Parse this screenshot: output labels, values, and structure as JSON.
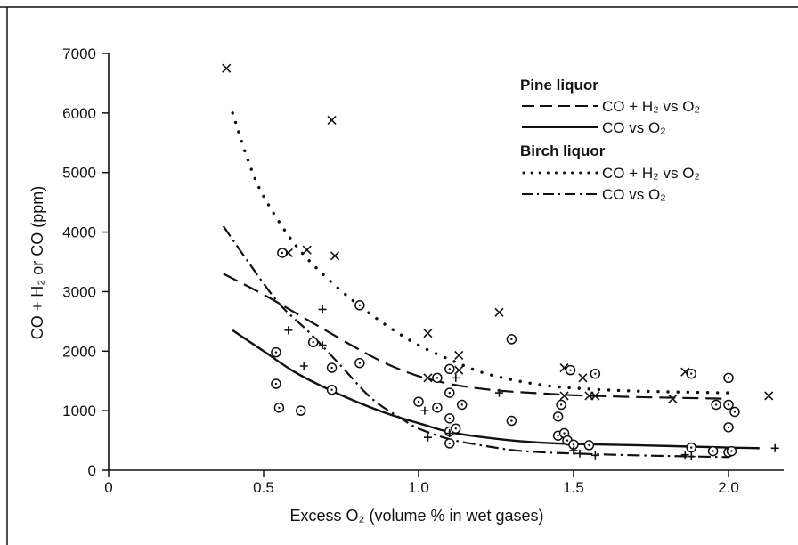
{
  "chart_data": {
    "type": "scatter",
    "xlabel": "Excess O₂ (volume % in wet gases)",
    "ylabel": "CO + H₂ or CO (ppm)",
    "xlim": [
      0,
      2.2
    ],
    "ylim": [
      0,
      7000
    ],
    "x_ticks": [
      "0",
      "0.5",
      "1.0",
      "1.5",
      "2.0"
    ],
    "y_ticks": [
      "0",
      "1000",
      "2000",
      "3000",
      "4000",
      "5000",
      "6000",
      "7000"
    ],
    "grid": false,
    "legend_position": "top-right",
    "legend": [
      {
        "heading": "Pine liquor",
        "entries": [
          {
            "label": "CO + H₂ vs O₂",
            "style": "long-dash"
          },
          {
            "label": "CO vs O₂",
            "style": "solid"
          }
        ]
      },
      {
        "heading": "Birch liquor",
        "entries": [
          {
            "label": "CO + H₂ vs O₂",
            "style": "dotted"
          },
          {
            "label": "CO vs O₂",
            "style": "dash-dot"
          }
        ]
      }
    ],
    "curves": [
      {
        "group": "Pine liquor",
        "label": "CO + H₂ vs O₂",
        "style": "long-dash",
        "x": [
          0.37,
          0.5,
          0.6,
          0.7,
          0.8,
          0.9,
          1.0,
          1.1,
          1.2,
          1.3,
          1.4,
          1.5,
          1.7,
          2.0
        ],
        "y": [
          3300,
          2950,
          2650,
          2350,
          2050,
          1780,
          1580,
          1450,
          1370,
          1320,
          1290,
          1260,
          1230,
          1200
        ]
      },
      {
        "group": "Pine liquor",
        "label": "CO vs O₂",
        "style": "solid",
        "x": [
          0.4,
          0.5,
          0.6,
          0.7,
          0.8,
          0.9,
          1.0,
          1.1,
          1.2,
          1.3,
          1.4,
          1.5,
          1.7,
          2.0,
          2.1
        ],
        "y": [
          2350,
          2000,
          1650,
          1380,
          1150,
          950,
          790,
          640,
          560,
          500,
          460,
          440,
          420,
          380,
          370
        ]
      },
      {
        "group": "Birch liquor",
        "label": "CO + H₂ vs O₂",
        "style": "dotted",
        "x": [
          0.4,
          0.45,
          0.5,
          0.6,
          0.7,
          0.8,
          0.9,
          1.0,
          1.1,
          1.2,
          1.3,
          1.4,
          1.5,
          1.7,
          2.0
        ],
        "y": [
          6000,
          5200,
          4600,
          3800,
          3250,
          2800,
          2420,
          2100,
          1860,
          1650,
          1520,
          1430,
          1380,
          1330,
          1300
        ]
      },
      {
        "group": "Birch liquor",
        "label": "CO vs O₂",
        "style": "dash-dot",
        "x": [
          0.37,
          0.45,
          0.55,
          0.65,
          0.75,
          0.85,
          0.95,
          1.0,
          1.1,
          1.2,
          1.3,
          1.4,
          1.5,
          1.7,
          2.0
        ],
        "y": [
          4100,
          3500,
          2800,
          2300,
          1750,
          1200,
          850,
          700,
          520,
          420,
          340,
          300,
          280,
          250,
          220
        ]
      }
    ],
    "points": {
      "cross": [
        [
          0.38,
          6750
        ],
        [
          0.58,
          3650
        ],
        [
          0.64,
          3700
        ],
        [
          0.73,
          3600
        ],
        [
          0.72,
          5880
        ],
        [
          1.03,
          2300
        ],
        [
          1.03,
          1550
        ],
        [
          1.13,
          1930
        ],
        [
          1.13,
          1680
        ],
        [
          1.26,
          2650
        ],
        [
          1.47,
          1720
        ],
        [
          1.47,
          1250
        ],
        [
          1.53,
          1550
        ],
        [
          1.55,
          1250
        ],
        [
          1.57,
          1250
        ],
        [
          1.82,
          1200
        ],
        [
          1.86,
          1650
        ],
        [
          2.13,
          1250
        ]
      ],
      "circle": [
        [
          0.56,
          3650
        ],
        [
          0.54,
          1980
        ],
        [
          0.54,
          1450
        ],
        [
          0.55,
          1050
        ],
        [
          0.62,
          1000
        ],
        [
          0.66,
          2150
        ],
        [
          0.72,
          1720
        ],
        [
          0.72,
          1350
        ],
        [
          0.81,
          2770
        ],
        [
          0.81,
          1800
        ],
        [
          1.0,
          1150
        ],
        [
          1.06,
          1550
        ],
        [
          1.06,
          1050
        ],
        [
          1.1,
          1700
        ],
        [
          1.1,
          1300
        ],
        [
          1.1,
          870
        ],
        [
          1.1,
          650
        ],
        [
          1.1,
          450
        ],
        [
          1.12,
          700
        ],
        [
          1.14,
          1100
        ],
        [
          1.3,
          2200
        ],
        [
          1.3,
          830
        ],
        [
          1.45,
          900
        ],
        [
          1.46,
          1100
        ],
        [
          1.45,
          580
        ],
        [
          1.47,
          620
        ],
        [
          1.48,
          500
        ],
        [
          1.5,
          430
        ],
        [
          1.49,
          1680
        ],
        [
          1.55,
          420
        ],
        [
          1.57,
          1620
        ],
        [
          1.88,
          1620
        ],
        [
          1.88,
          380
        ],
        [
          1.95,
          320
        ],
        [
          1.96,
          1100
        ],
        [
          2.0,
          1550
        ],
        [
          2.0,
          1100
        ],
        [
          2.0,
          300
        ],
        [
          2.0,
          720
        ],
        [
          2.02,
          980
        ],
        [
          2.01,
          320
        ]
      ],
      "plus": [
        [
          0.58,
          2350
        ],
        [
          0.63,
          1750
        ],
        [
          0.69,
          2700
        ],
        [
          0.69,
          2100
        ],
        [
          1.02,
          1000
        ],
        [
          1.03,
          550
        ],
        [
          1.1,
          620
        ],
        [
          1.12,
          1550
        ],
        [
          1.26,
          1300
        ],
        [
          1.5,
          330
        ],
        [
          1.52,
          280
        ],
        [
          1.57,
          250
        ],
        [
          1.86,
          260
        ],
        [
          1.88,
          230
        ],
        [
          2.15,
          370
        ]
      ]
    }
  }
}
